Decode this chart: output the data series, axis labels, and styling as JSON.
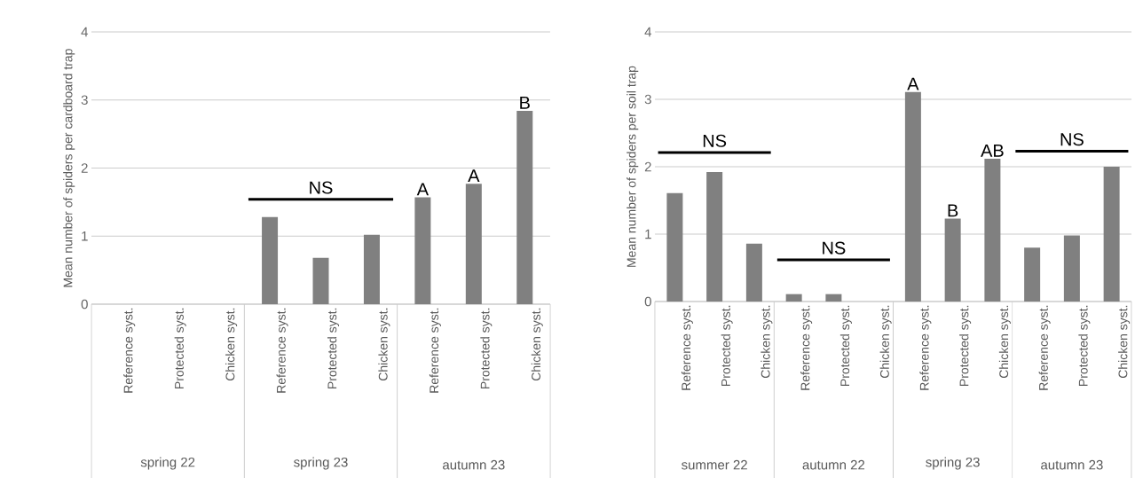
{
  "chart_data": [
    {
      "type": "bar",
      "ylabel": "Mean number of spiders per cardboard trap",
      "categories": [
        "Reference syst.",
        "Protected syst.",
        "Chicken syst.",
        "Reference syst.",
        "Protected syst.",
        "Chicken syst.",
        "Reference syst.",
        "Protected syst.",
        "Chicken syst."
      ],
      "ylim": [
        0,
        4
      ],
      "yticks": [
        0,
        1,
        2,
        3,
        4
      ],
      "grid": "y",
      "series": [
        {
          "color": "#808080",
          "values": [
            0,
            0,
            0,
            1.28,
            0.68,
            1.02,
            1.57,
            1.77,
            2.84
          ],
          "value_labels": [
            null,
            null,
            null,
            null,
            null,
            null,
            "A",
            "A",
            "B"
          ]
        }
      ],
      "annotations": [
        "spring 22",
        "spring 23",
        "autumn 23",
        "NS"
      ]
    },
    {
      "type": "bar",
      "ylabel": "Mean number of spiders per soil trap",
      "categories": [
        "Reference syst.",
        "Protected syst.",
        "Chicken syst.",
        "Reference syst.",
        "Protected syst.",
        "Chicken syst.",
        "Reference syst.",
        "Protected syst.",
        "Chicken syst.",
        "Reference syst.",
        "Protected syst.",
        "Chicken syst."
      ],
      "ylim": [
        0,
        4
      ],
      "yticks": [
        0,
        1,
        2,
        3,
        4
      ],
      "grid": "y",
      "series": [
        {
          "color": "#808080",
          "values": [
            1.61,
            1.92,
            0.86,
            0.11,
            0.11,
            0,
            3.11,
            1.23,
            2.12,
            0.8,
            0.98,
            2.0
          ],
          "value_labels": [
            null,
            null,
            null,
            null,
            null,
            null,
            "A",
            "B",
            "AB",
            null,
            null,
            null
          ]
        }
      ],
      "annotations": [
        "summer 22",
        "autumn 22",
        "spring 23",
        "autumn 23",
        "NS",
        "NS",
        "NS"
      ]
    }
  ]
}
